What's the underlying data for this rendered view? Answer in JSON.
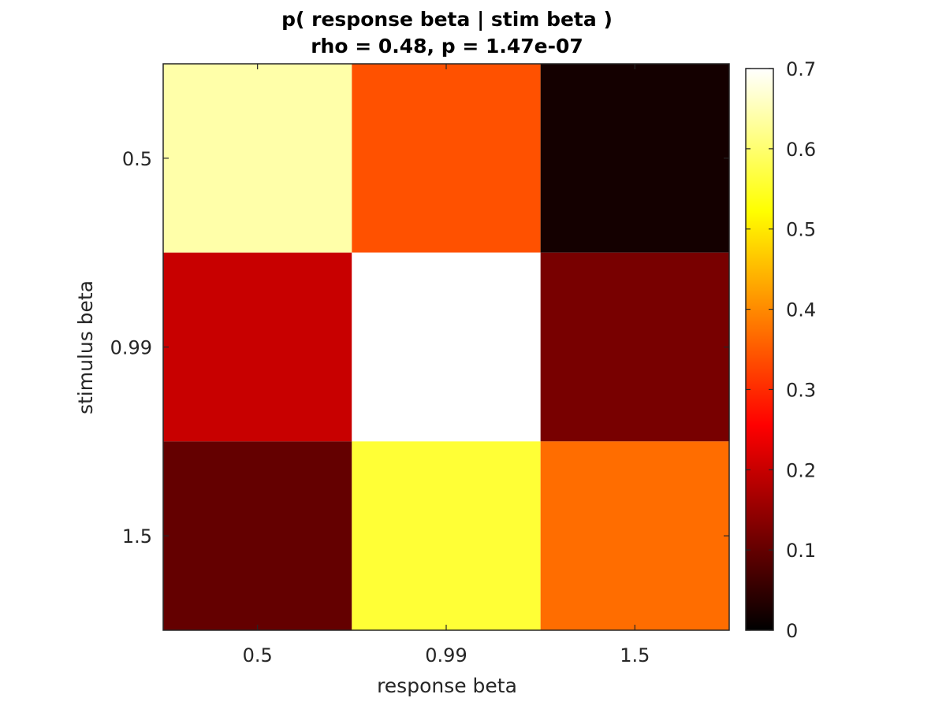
{
  "chart_data": {
    "type": "heatmap",
    "title": "p( response beta | stim beta )",
    "subtitle": "rho = 0.48, p = 1.47e-07",
    "xlabel": "response beta",
    "ylabel": "stimulus beta",
    "x_categories": [
      "0.5",
      "0.99",
      "1.5"
    ],
    "y_categories": [
      "0.5",
      "0.99",
      "1.5"
    ],
    "values": [
      [
        0.64,
        0.34,
        0.02
      ],
      [
        0.2,
        0.7,
        0.12
      ],
      [
        0.1,
        0.56,
        0.37
      ]
    ],
    "colormap": "hot",
    "clim": [
      0,
      0.7
    ],
    "colorbar": {
      "ticks": [
        0,
        0.1,
        0.2,
        0.3,
        0.4,
        0.5,
        0.6,
        0.7
      ],
      "tick_labels": [
        "0",
        "0.1",
        "0.2",
        "0.3",
        "0.4",
        "0.5",
        "0.6",
        "0.7"
      ]
    },
    "grid": false
  }
}
